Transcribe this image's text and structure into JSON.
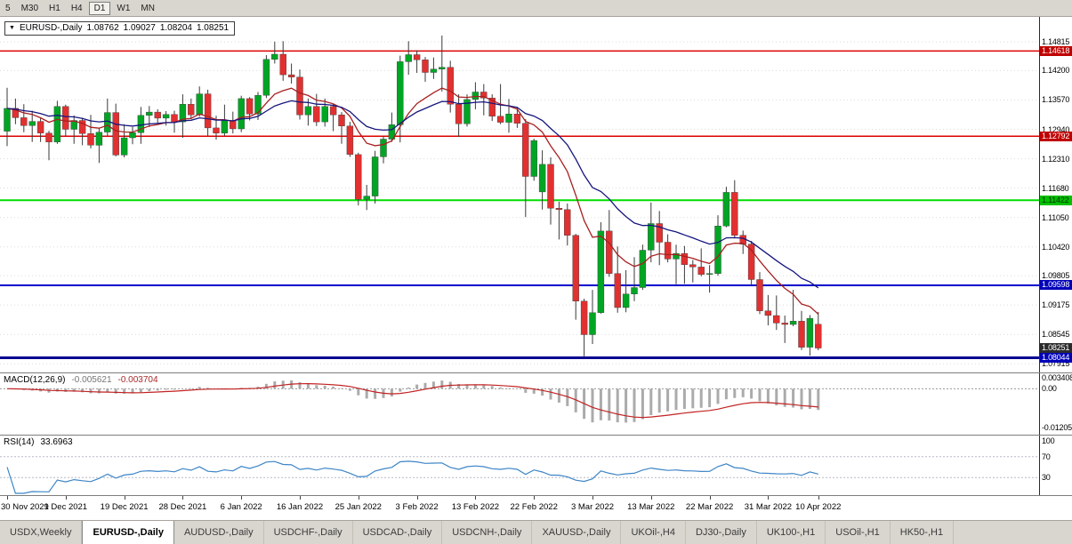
{
  "toolbar": {
    "buttons": [
      {
        "label": "5",
        "active": false
      },
      {
        "label": "M30",
        "active": false
      },
      {
        "label": "H1",
        "active": false
      },
      {
        "label": "H4",
        "active": false
      },
      {
        "label": "D1",
        "active": true
      },
      {
        "label": "W1",
        "active": false
      },
      {
        "label": "MN",
        "active": false
      }
    ]
  },
  "chart": {
    "symbol": "EURUSD-,Daily",
    "ohlc": {
      "open": "1.08762",
      "high": "1.09027",
      "low": "1.08204",
      "close": "1.08251"
    }
  },
  "chart_data": {
    "type": "candlestick",
    "symbol": "EURUSD",
    "timeframe": "Daily",
    "view": {
      "price_top": 1.1535,
      "price_bottom": 1.0773
    },
    "colors": {
      "bull": "#00a524",
      "bear": "#e23030",
      "wick": "#3a3a3a",
      "ma_fast": "#a82020",
      "ma_slow": "#16167e",
      "macd_hist": "#ababab",
      "macd_signal": "#c22222",
      "rsi": "#3d85c6"
    },
    "price_scale": [
      "1.14815",
      "1.14200",
      "1.13570",
      "1.12940",
      "1.12310",
      "1.11680",
      "1.11050",
      "1.10420",
      "1.09805",
      "1.09175",
      "1.08545",
      "1.07915"
    ],
    "badges": [
      {
        "label": "1.14618",
        "price": 1.14618,
        "bg": "#c00000",
        "fg": "#ffffff"
      },
      {
        "label": "1.12792",
        "price": 1.12792,
        "bg": "#c00000",
        "fg": "#ffffff"
      },
      {
        "label": "1.11422",
        "price": 1.11422,
        "bg": "#00c000",
        "fg": "#072c07"
      },
      {
        "label": "1.09598",
        "price": 1.09598,
        "bg": "#0000b8",
        "fg": "#ffffff"
      },
      {
        "label": "1.08251",
        "price": 1.08251,
        "bg": "#2b2b2b",
        "fg": "#ffffff"
      },
      {
        "label": "1.08044",
        "price": 1.08044,
        "bg": "#0000b8",
        "fg": "#ffffff"
      }
    ],
    "hlines": [
      {
        "price": 1.14618,
        "color": "#dd0000",
        "width": 1.5,
        "name": "resistance-line-1.14618"
      },
      {
        "price": 1.12792,
        "color": "#dd0000",
        "width": 1.5,
        "name": "resistance-line-1.12792"
      },
      {
        "price": 1.11422,
        "color": "#00dd00",
        "width": 2,
        "name": "pivot-line-1.11422"
      },
      {
        "price": 1.09598,
        "color": "#0000cc",
        "width": 2,
        "name": "support-line-1.09598"
      },
      {
        "price": 1.08044,
        "color": "#000090",
        "width": 3,
        "name": "support-line-1.08044"
      }
    ],
    "ma": [
      {
        "period": 10,
        "color": "#a82020",
        "name": "ma-fast"
      },
      {
        "period": 21,
        "color": "#16167e",
        "name": "ma-slow"
      }
    ],
    "macd": {
      "name": "MACD(12,26,9)",
      "value_main": "-0.005621",
      "value_signal": "-0.003704",
      "fast": 12,
      "slow": 26,
      "signal": 9,
      "scale": [
        {
          "label": "0.003408",
          "v": 0.003408
        },
        {
          "label": "0.00",
          "v": 0
        },
        {
          "label": "-0.01205",
          "v": -0.01205
        }
      ]
    },
    "rsi": {
      "name": "RSI(14)",
      "value": "33.6963",
      "period": 14,
      "levels": [
        70,
        30
      ],
      "scale": [
        {
          "label": "100",
          "v": 100
        },
        {
          "label": "70",
          "v": 70
        },
        {
          "label": "30",
          "v": 30
        }
      ]
    },
    "candles": [
      [
        1.129,
        1.1383,
        1.1258,
        1.1339
      ],
      [
        1.1339,
        1.136,
        1.1305,
        1.1319
      ],
      [
        1.1319,
        1.1348,
        1.1288,
        1.1302
      ],
      [
        1.1302,
        1.1334,
        1.1267,
        1.1311
      ],
      [
        1.1311,
        1.1319,
        1.1267,
        1.1286
      ],
      [
        1.1286,
        1.1291,
        1.1228,
        1.1267
      ],
      [
        1.1267,
        1.1355,
        1.1263,
        1.1343
      ],
      [
        1.1343,
        1.1347,
        1.1279,
        1.1294
      ],
      [
        1.1294,
        1.1324,
        1.1263,
        1.1313
      ],
      [
        1.1313,
        1.1319,
        1.126,
        1.1285
      ],
      [
        1.1285,
        1.1325,
        1.1253,
        1.126
      ],
      [
        1.126,
        1.1296,
        1.1222,
        1.1288
      ],
      [
        1.1288,
        1.136,
        1.128,
        1.133
      ],
      [
        1.133,
        1.1349,
        1.1236,
        1.1239
      ],
      [
        1.1239,
        1.1305,
        1.1234,
        1.1276
      ],
      [
        1.1276,
        1.1299,
        1.1262,
        1.1287
      ],
      [
        1.1287,
        1.1342,
        1.1263,
        1.1324
      ],
      [
        1.1324,
        1.1344,
        1.1299,
        1.1331
      ],
      [
        1.1331,
        1.1337,
        1.1308,
        1.1318
      ],
      [
        1.1318,
        1.1333,
        1.1302,
        1.1326
      ],
      [
        1.1326,
        1.1334,
        1.1287,
        1.131
      ],
      [
        1.131,
        1.1369,
        1.1276,
        1.1348
      ],
      [
        1.1348,
        1.136,
        1.1316,
        1.1325
      ],
      [
        1.1325,
        1.1386,
        1.1321,
        1.137
      ],
      [
        1.137,
        1.1379,
        1.1279,
        1.1297
      ],
      [
        1.1297,
        1.1323,
        1.1272,
        1.1286
      ],
      [
        1.1286,
        1.1347,
        1.128,
        1.1313
      ],
      [
        1.1313,
        1.1332,
        1.1285,
        1.1295
      ],
      [
        1.1295,
        1.1366,
        1.1288,
        1.136
      ],
      [
        1.136,
        1.1363,
        1.1313,
        1.1327
      ],
      [
        1.1327,
        1.1374,
        1.1314,
        1.1367
      ],
      [
        1.1367,
        1.1453,
        1.1361,
        1.1444
      ],
      [
        1.1444,
        1.1482,
        1.1435,
        1.1455
      ],
      [
        1.1455,
        1.1483,
        1.1398,
        1.1411
      ],
      [
        1.1411,
        1.1435,
        1.1392,
        1.1406
      ],
      [
        1.1406,
        1.1422,
        1.1315,
        1.1325
      ],
      [
        1.1325,
        1.136,
        1.1302,
        1.1343
      ],
      [
        1.1343,
        1.137,
        1.1301,
        1.131
      ],
      [
        1.131,
        1.136,
        1.13,
        1.1343
      ],
      [
        1.1343,
        1.1349,
        1.129,
        1.1325
      ],
      [
        1.1325,
        1.1331,
        1.1263,
        1.1301
      ],
      [
        1.1301,
        1.131,
        1.1235,
        1.124
      ],
      [
        1.124,
        1.1244,
        1.1131,
        1.1144
      ],
      [
        1.1144,
        1.1175,
        1.1121,
        1.1151
      ],
      [
        1.1151,
        1.1248,
        1.1135,
        1.1235
      ],
      [
        1.1235,
        1.1279,
        1.1221,
        1.1273
      ],
      [
        1.1273,
        1.133,
        1.1267,
        1.1304
      ],
      [
        1.1304,
        1.1452,
        1.1266,
        1.1439
      ],
      [
        1.1439,
        1.1483,
        1.1411,
        1.1454
      ],
      [
        1.1454,
        1.1463,
        1.1415,
        1.1443
      ],
      [
        1.1443,
        1.1449,
        1.1396,
        1.1416
      ],
      [
        1.1416,
        1.1448,
        1.1402,
        1.1423
      ],
      [
        1.1423,
        1.1495,
        1.1375,
        1.1427
      ],
      [
        1.1427,
        1.1441,
        1.133,
        1.1348
      ],
      [
        1.1348,
        1.1369,
        1.1278,
        1.1306
      ],
      [
        1.1306,
        1.1369,
        1.13,
        1.1358
      ],
      [
        1.1358,
        1.1395,
        1.1337,
        1.1374
      ],
      [
        1.1374,
        1.1391,
        1.1324,
        1.1361
      ],
      [
        1.1361,
        1.1369,
        1.1312,
        1.1322
      ],
      [
        1.1322,
        1.1391,
        1.1305,
        1.1309
      ],
      [
        1.1309,
        1.1359,
        1.1287,
        1.1327
      ],
      [
        1.1327,
        1.1342,
        1.1297,
        1.1307
      ],
      [
        1.1307,
        1.1316,
        1.1106,
        1.1193
      ],
      [
        1.1193,
        1.1274,
        1.1184,
        1.127
      ],
      [
        1.116,
        1.1249,
        1.1122,
        1.1219
      ],
      [
        1.1219,
        1.1234,
        1.109,
        1.1125
      ],
      [
        1.1125,
        1.1139,
        1.1058,
        1.1122
      ],
      [
        1.1122,
        1.1135,
        1.1045,
        1.1067
      ],
      [
        1.1067,
        1.107,
        1.0886,
        1.0926
      ],
      [
        1.0926,
        1.0931,
        1.0806,
        1.0854
      ],
      [
        1.0854,
        1.095,
        1.0834,
        1.0901
      ],
      [
        1.0901,
        1.1095,
        1.0899,
        1.1076
      ],
      [
        1.1076,
        1.1121,
        1.0978,
        1.0985
      ],
      [
        1.0985,
        1.1043,
        1.0901,
        1.0912
      ],
      [
        1.0912,
        1.0992,
        1.0902,
        1.0941
      ],
      [
        1.0941,
        1.102,
        1.0926,
        1.0955
      ],
      [
        1.0955,
        1.1047,
        1.095,
        1.1035
      ],
      [
        1.1035,
        1.1137,
        1.1009,
        1.1092
      ],
      [
        1.1092,
        1.1119,
        1.1003,
        1.1052
      ],
      [
        1.1052,
        1.1069,
        1.1009,
        1.1016
      ],
      [
        1.1016,
        1.1047,
        1.0962,
        1.1028
      ],
      [
        1.1028,
        1.1044,
        1.0963,
        1.1004
      ],
      [
        1.1004,
        1.1014,
        1.0966,
        1.0999
      ],
      [
        1.0999,
        1.1039,
        1.0979,
        1.0983
      ],
      [
        1.0983,
        1.1003,
        1.0944,
        1.0985
      ],
      [
        1.0985,
        1.111,
        1.098,
        1.1087
      ],
      [
        1.1087,
        1.1171,
        1.1084,
        1.1159
      ],
      [
        1.1159,
        1.1185,
        1.106,
        1.1067
      ],
      [
        1.1067,
        1.1077,
        1.1027,
        1.1048
      ],
      [
        1.1048,
        1.1055,
        1.096,
        1.0972
      ],
      [
        1.0972,
        1.0988,
        1.0898,
        1.0905
      ],
      [
        1.0905,
        1.0939,
        1.0874,
        1.0895
      ],
      [
        1.0895,
        1.0938,
        1.0864,
        1.0879
      ],
      [
        1.0879,
        1.0895,
        1.0836,
        1.0876
      ],
      [
        1.0876,
        1.095,
        1.0872,
        1.0883
      ],
      [
        1.0883,
        1.0905,
        1.0821,
        1.0827
      ],
      [
        1.0827,
        1.0896,
        1.0809,
        1.0889
      ],
      [
        1.08762,
        1.09027,
        1.08204,
        1.08251
      ]
    ]
  },
  "date_axis": {
    "labels": [
      {
        "idx": 0,
        "text": "30 Nov 2021"
      },
      {
        "idx": 7,
        "text": "9 Dec 2021"
      },
      {
        "idx": 14,
        "text": "19 Dec 2021"
      },
      {
        "idx": 21,
        "text": "28 Dec 2021"
      },
      {
        "idx": 28,
        "text": "6 Jan 2022"
      },
      {
        "idx": 35,
        "text": "16 Jan 2022"
      },
      {
        "idx": 42,
        "text": "25 Jan 2022"
      },
      {
        "idx": 49,
        "text": "3 Feb 2022"
      },
      {
        "idx": 56,
        "text": "13 Feb 2022"
      },
      {
        "idx": 63,
        "text": "22 Feb 2022"
      },
      {
        "idx": 70,
        "text": "3 Mar 2022"
      },
      {
        "idx": 77,
        "text": "13 Mar 2022"
      },
      {
        "idx": 84,
        "text": "22 Mar 2022"
      },
      {
        "idx": 91,
        "text": "31 Mar 2022"
      },
      {
        "idx": 97,
        "text": "10 Apr 2022"
      }
    ]
  },
  "tabs": {
    "items": [
      {
        "label": "USDX,Weekly",
        "active": false
      },
      {
        "label": "EURUSD-,Daily",
        "active": true
      },
      {
        "label": "AUDUSD-,Daily",
        "active": false
      },
      {
        "label": "USDCHF-,Daily",
        "active": false
      },
      {
        "label": "USDCAD-,Daily",
        "active": false
      },
      {
        "label": "USDCNH-,Daily",
        "active": false
      },
      {
        "label": "XAUUSD-,Daily",
        "active": false
      },
      {
        "label": "UKOil-,H4",
        "active": false
      },
      {
        "label": "DJ30-,Daily",
        "active": false
      },
      {
        "label": "UK100-,H1",
        "active": false
      },
      {
        "label": "USOil-,H1",
        "active": false
      },
      {
        "label": "HK50-,H1",
        "active": false
      }
    ]
  }
}
